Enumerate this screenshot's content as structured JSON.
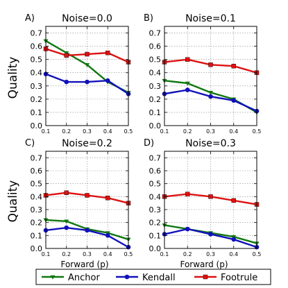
{
  "figure": {
    "ylabel": "Quality",
    "xlabel": "Forward (p)",
    "colors": {
      "Anchor": "#117711",
      "Kendall": "#1111bb",
      "Footrule": "#dd1111"
    },
    "legend": [
      "Anchor",
      "Kendall",
      "Footrule"
    ]
  },
  "chart_data": [
    {
      "type": "line",
      "panel": "A)",
      "title": "Noise=0.0",
      "x": [
        0.1,
        0.2,
        0.3,
        0.4,
        0.5
      ],
      "xticks": [
        "0.1",
        "0.2",
        "0.3",
        "0.4",
        "0.5"
      ],
      "yticks": [
        "0.0",
        "0.1",
        "0.2",
        "0.3",
        "0.4",
        "0.5",
        "0.6",
        "0.7"
      ],
      "ylim": [
        0,
        0.75
      ],
      "grid": true,
      "series": [
        {
          "name": "Anchor",
          "values": [
            0.64,
            0.55,
            0.46,
            0.33,
            0.25
          ]
        },
        {
          "name": "Kendall",
          "values": [
            0.39,
            0.33,
            0.33,
            0.34,
            0.24
          ]
        },
        {
          "name": "Footrule",
          "values": [
            0.58,
            0.53,
            0.54,
            0.55,
            0.48
          ]
        }
      ]
    },
    {
      "type": "line",
      "panel": "B)",
      "title": "Noise=0.1",
      "x": [
        0.1,
        0.2,
        0.3,
        0.4,
        0.5
      ],
      "xticks": [
        "0.1",
        "0.2",
        "0.3",
        "0.4",
        "0.5"
      ],
      "yticks": [
        "0.0",
        "0.1",
        "0.2",
        "0.3",
        "0.4",
        "0.5",
        "0.6",
        "0.7"
      ],
      "ylim": [
        0,
        0.75
      ],
      "grid": true,
      "series": [
        {
          "name": "Anchor",
          "values": [
            0.34,
            0.32,
            0.25,
            0.2,
            0.1
          ]
        },
        {
          "name": "Kendall",
          "values": [
            0.24,
            0.27,
            0.22,
            0.19,
            0.11
          ]
        },
        {
          "name": "Footrule",
          "values": [
            0.48,
            0.5,
            0.46,
            0.45,
            0.4
          ]
        }
      ]
    },
    {
      "type": "line",
      "panel": "C)",
      "title": "Noise=0.2",
      "x": [
        0.1,
        0.2,
        0.3,
        0.4,
        0.5
      ],
      "xticks": [
        "0.1",
        "0.2",
        "0.3",
        "0.4",
        "0.5"
      ],
      "yticks": [
        "0.0",
        "0.1",
        "0.2",
        "0.3",
        "0.4",
        "0.5",
        "0.6",
        "0.7"
      ],
      "ylim": [
        0,
        0.75
      ],
      "grid": true,
      "series": [
        {
          "name": "Anchor",
          "values": [
            0.22,
            0.21,
            0.15,
            0.12,
            0.07
          ]
        },
        {
          "name": "Kendall",
          "values": [
            0.14,
            0.16,
            0.14,
            0.1,
            0.01
          ]
        },
        {
          "name": "Footrule",
          "values": [
            0.41,
            0.43,
            0.41,
            0.39,
            0.35
          ]
        }
      ]
    },
    {
      "type": "line",
      "panel": "D)",
      "title": "Noise=0.3",
      "x": [
        0.1,
        0.2,
        0.3,
        0.4,
        0.5
      ],
      "xticks": [
        "0.1",
        "0.2",
        "0.3",
        "0.4",
        "0.5"
      ],
      "yticks": [
        "0.0",
        "0.1",
        "0.2",
        "0.3",
        "0.4",
        "0.5",
        "0.6",
        "0.7"
      ],
      "ylim": [
        0,
        0.75
      ],
      "grid": true,
      "series": [
        {
          "name": "Anchor",
          "values": [
            0.18,
            0.15,
            0.12,
            0.09,
            0.04
          ]
        },
        {
          "name": "Kendall",
          "values": [
            0.11,
            0.15,
            0.11,
            0.07,
            0.01
          ]
        },
        {
          "name": "Footrule",
          "values": [
            0.4,
            0.42,
            0.4,
            0.37,
            0.34
          ]
        }
      ]
    }
  ]
}
